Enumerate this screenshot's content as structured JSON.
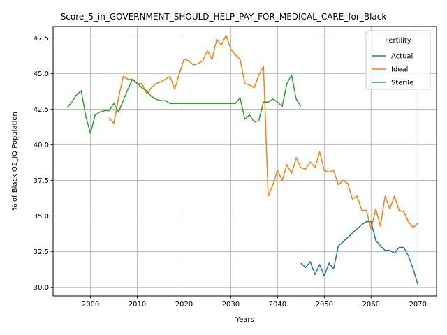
{
  "chart_data": {
    "type": "line",
    "title": "Score_5_in_GOVERNMENT_SHOULD_HELP_PAY_FOR_MEDICAL_CARE_for_Black",
    "xlabel": "Years",
    "ylabel": "% of Black Q2_IQ Population",
    "xlim": [
      1992,
      2074
    ],
    "ylim": [
      29.4,
      48.3
    ],
    "xticks": [
      2000,
      2010,
      2020,
      2030,
      2040,
      2050,
      2060,
      2070
    ],
    "yticks": [
      30.0,
      32.5,
      35.0,
      37.5,
      40.0,
      42.5,
      45.0,
      47.5
    ],
    "ytick_labels": [
      "30.0",
      "32.5",
      "35.0",
      "37.5",
      "40.0",
      "42.5",
      "45.0",
      "47.5"
    ],
    "grid": true,
    "legend": {
      "title": "Fertility",
      "placement": "top-right"
    },
    "series": [
      {
        "name": "Actual",
        "color": "#1f77b4",
        "x": [
          2045,
          2046,
          2047,
          2048,
          2049,
          2050,
          2051,
          2052,
          2053,
          2054,
          2055,
          2056,
          2057,
          2058,
          2059,
          2060,
          2061,
          2062,
          2063,
          2064,
          2065,
          2066,
          2067,
          2068,
          2069,
          2070
        ],
        "y": [
          31.7,
          31.4,
          31.8,
          30.9,
          31.6,
          30.8,
          31.7,
          31.3,
          32.9,
          33.2,
          33.5,
          33.8,
          34.1,
          34.4,
          34.6,
          34.6,
          33.3,
          32.9,
          32.6,
          32.6,
          32.4,
          32.8,
          32.8,
          32.2,
          31.3,
          30.2
        ]
      },
      {
        "name": "Ideal",
        "color": "#ff7f0e",
        "x": [
          2004,
          2005,
          2006,
          2007,
          2008,
          2009,
          2010,
          2011,
          2012,
          2013,
          2014,
          2015,
          2016,
          2017,
          2018,
          2019,
          2020,
          2021,
          2022,
          2023,
          2024,
          2025,
          2026,
          2027,
          2028,
          2029,
          2030,
          2031,
          2032,
          2033,
          2034,
          2035,
          2036,
          2037,
          2038,
          2039,
          2040,
          2041,
          2042,
          2043,
          2044,
          2045,
          2046,
          2047,
          2048,
          2049,
          2050,
          2051,
          2052,
          2053,
          2054,
          2055,
          2056,
          2057,
          2058,
          2059,
          2060,
          2061,
          2062,
          2063,
          2064,
          2065,
          2066,
          2067,
          2068,
          2069,
          2070
        ],
        "y": [
          41.9,
          41.5,
          43.3,
          44.8,
          44.6,
          44.6,
          44.3,
          44.3,
          43.6,
          44.0,
          44.3,
          44.4,
          44.6,
          44.8,
          43.9,
          45.0,
          46.0,
          45.9,
          45.6,
          45.7,
          45.9,
          46.6,
          46.0,
          47.4,
          47.0,
          47.7,
          46.7,
          46.3,
          46.0,
          44.3,
          44.2,
          44.0,
          44.9,
          45.5,
          36.4,
          37.2,
          38.2,
          37.5,
          38.6,
          38.0,
          39.1,
          38.4,
          38.3,
          38.8,
          38.4,
          39.5,
          38.2,
          38.1,
          38.2,
          37.2,
          37.5,
          37.3,
          36.2,
          36.4,
          35.4,
          35.4,
          34.1,
          35.5,
          34.3,
          36.4,
          35.5,
          36.4,
          35.4,
          35.3,
          34.6,
          34.2,
          34.5
        ]
      },
      {
        "name": "Sterile",
        "color": "#2ca02c",
        "x": [
          1995,
          1996,
          1997,
          1998,
          1999,
          2000,
          2001,
          2002,
          2003,
          2004,
          2005,
          2006,
          2007,
          2008,
          2009,
          2010,
          2011,
          2012,
          2013,
          2014,
          2015,
          2016,
          2017,
          2018,
          2019,
          2020,
          2021,
          2022,
          2023,
          2024,
          2025,
          2026,
          2027,
          2028,
          2029,
          2030,
          2031,
          2032,
          2033,
          2034,
          2035,
          2036,
          2037,
          2038,
          2039,
          2040,
          2041,
          2042,
          2043,
          2044,
          2045
        ],
        "y": [
          42.6,
          43.0,
          43.5,
          43.8,
          42.0,
          40.8,
          42.1,
          42.3,
          42.4,
          42.4,
          42.9,
          42.3,
          43.1,
          43.9,
          44.6,
          44.3,
          44.0,
          43.8,
          43.4,
          43.2,
          43.1,
          43.1,
          42.9,
          42.9,
          42.9,
          42.9,
          42.9,
          42.9,
          42.9,
          42.9,
          42.9,
          42.9,
          42.9,
          42.9,
          42.9,
          42.9,
          42.9,
          43.3,
          41.8,
          42.1,
          41.6,
          41.7,
          43.0,
          43.0,
          43.2,
          43.0,
          42.7,
          44.3,
          44.9,
          43.2,
          42.7
        ]
      }
    ]
  }
}
